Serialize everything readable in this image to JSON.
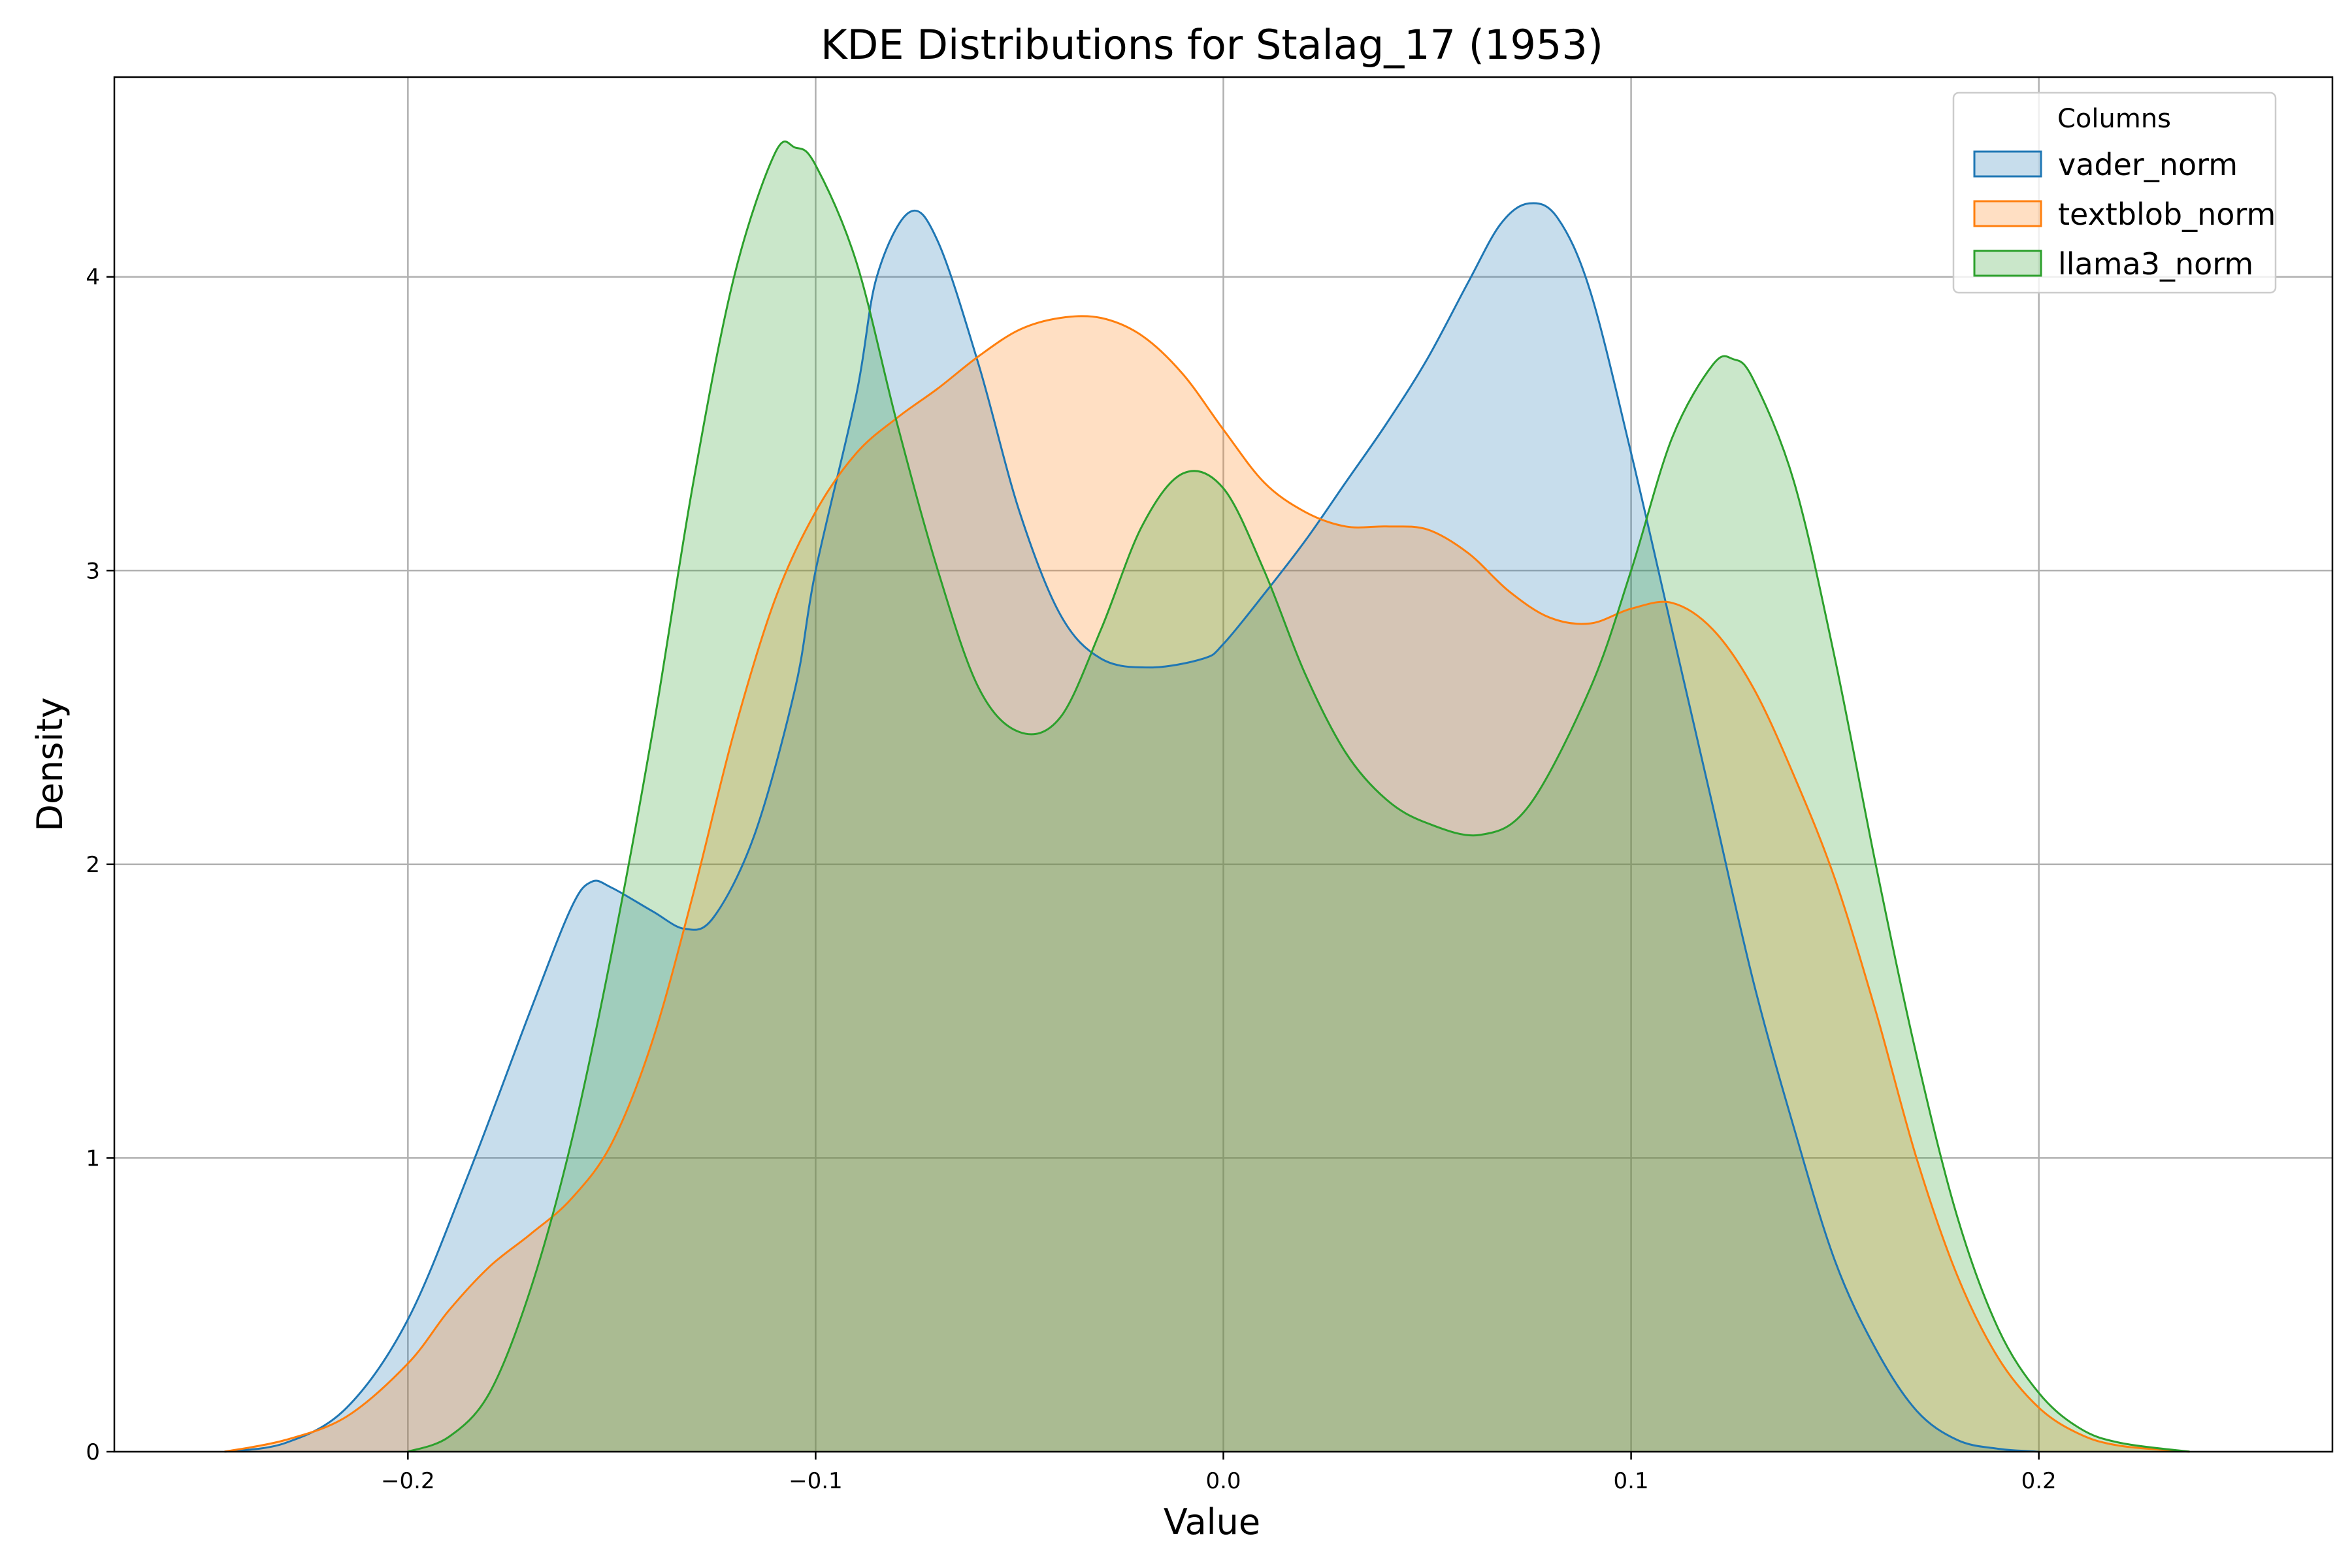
{
  "chart_data": {
    "type": "area",
    "title": "KDE Distributions for Stalag_17 (1953)",
    "xlabel": "Value",
    "ylabel": "Density",
    "xlim": [
      -0.272,
      0.272
    ],
    "ylim": [
      0,
      4.68
    ],
    "xticks": [
      -0.2,
      -0.1,
      0.0,
      0.1,
      0.2
    ],
    "xtick_labels": [
      "−0.2",
      "−0.1",
      "0.0",
      "0.1",
      "0.2"
    ],
    "yticks": [
      0,
      1,
      2,
      3,
      4
    ],
    "ytick_labels": [
      "0",
      "1",
      "2",
      "3",
      "4"
    ],
    "grid": true,
    "legend": {
      "title": "Columns",
      "placement": "top-right"
    },
    "series": [
      {
        "name": "vader_norm",
        "color": "#1f77b4",
        "points": [
          [
            -0.245,
            0
          ],
          [
            -0.23,
            0.03
          ],
          [
            -0.215,
            0.15
          ],
          [
            -0.2,
            0.45
          ],
          [
            -0.185,
            0.95
          ],
          [
            -0.17,
            1.5
          ],
          [
            -0.16,
            1.85
          ],
          [
            -0.155,
            1.94
          ],
          [
            -0.15,
            1.92
          ],
          [
            -0.14,
            1.84
          ],
          [
            -0.132,
            1.78
          ],
          [
            -0.125,
            1.82
          ],
          [
            -0.115,
            2.1
          ],
          [
            -0.105,
            2.6
          ],
          [
            -0.1,
            3.0
          ],
          [
            -0.09,
            3.6
          ],
          [
            -0.085,
            4.0
          ],
          [
            -0.077,
            4.22
          ],
          [
            -0.07,
            4.12
          ],
          [
            -0.06,
            3.7
          ],
          [
            -0.05,
            3.2
          ],
          [
            -0.04,
            2.85
          ],
          [
            -0.03,
            2.7
          ],
          [
            -0.018,
            2.67
          ],
          [
            -0.005,
            2.7
          ],
          [
            0.0,
            2.75
          ],
          [
            0.01,
            2.92
          ],
          [
            0.02,
            3.1
          ],
          [
            0.03,
            3.3
          ],
          [
            0.04,
            3.5
          ],
          [
            0.05,
            3.72
          ],
          [
            0.06,
            3.98
          ],
          [
            0.068,
            4.18
          ],
          [
            0.075,
            4.25
          ],
          [
            0.082,
            4.2
          ],
          [
            0.09,
            3.95
          ],
          [
            0.1,
            3.4
          ],
          [
            0.11,
            2.8
          ],
          [
            0.12,
            2.2
          ],
          [
            0.13,
            1.6
          ],
          [
            0.14,
            1.1
          ],
          [
            0.15,
            0.65
          ],
          [
            0.16,
            0.35
          ],
          [
            0.17,
            0.14
          ],
          [
            0.18,
            0.04
          ],
          [
            0.19,
            0.01
          ],
          [
            0.2,
            0
          ]
        ]
      },
      {
        "name": "textblob_norm",
        "color": "#ff7f0e",
        "points": [
          [
            -0.245,
            0
          ],
          [
            -0.23,
            0.04
          ],
          [
            -0.215,
            0.12
          ],
          [
            -0.2,
            0.3
          ],
          [
            -0.19,
            0.48
          ],
          [
            -0.18,
            0.63
          ],
          [
            -0.17,
            0.74
          ],
          [
            -0.16,
            0.86
          ],
          [
            -0.15,
            1.05
          ],
          [
            -0.14,
            1.4
          ],
          [
            -0.13,
            1.9
          ],
          [
            -0.12,
            2.45
          ],
          [
            -0.11,
            2.9
          ],
          [
            -0.1,
            3.2
          ],
          [
            -0.09,
            3.4
          ],
          [
            -0.08,
            3.52
          ],
          [
            -0.07,
            3.62
          ],
          [
            -0.06,
            3.73
          ],
          [
            -0.05,
            3.82
          ],
          [
            -0.04,
            3.86
          ],
          [
            -0.03,
            3.86
          ],
          [
            -0.02,
            3.8
          ],
          [
            -0.01,
            3.67
          ],
          [
            0.0,
            3.48
          ],
          [
            0.01,
            3.3
          ],
          [
            0.02,
            3.2
          ],
          [
            0.03,
            3.15
          ],
          [
            0.04,
            3.15
          ],
          [
            0.05,
            3.14
          ],
          [
            0.06,
            3.06
          ],
          [
            0.07,
            2.93
          ],
          [
            0.08,
            2.84
          ],
          [
            0.09,
            2.82
          ],
          [
            0.1,
            2.87
          ],
          [
            0.11,
            2.89
          ],
          [
            0.12,
            2.8
          ],
          [
            0.13,
            2.6
          ],
          [
            0.14,
            2.3
          ],
          [
            0.15,
            1.95
          ],
          [
            0.16,
            1.5
          ],
          [
            0.17,
            1.0
          ],
          [
            0.18,
            0.6
          ],
          [
            0.19,
            0.32
          ],
          [
            0.2,
            0.15
          ],
          [
            0.21,
            0.06
          ],
          [
            0.22,
            0.02
          ],
          [
            0.237,
            0
          ]
        ]
      },
      {
        "name": "llama3_norm",
        "color": "#2ca02c",
        "points": [
          [
            -0.2,
            0
          ],
          [
            -0.19,
            0.05
          ],
          [
            -0.18,
            0.2
          ],
          [
            -0.17,
            0.55
          ],
          [
            -0.16,
            1.05
          ],
          [
            -0.15,
            1.7
          ],
          [
            -0.14,
            2.45
          ],
          [
            -0.13,
            3.3
          ],
          [
            -0.12,
            4.0
          ],
          [
            -0.11,
            4.42
          ],
          [
            -0.105,
            4.44
          ],
          [
            -0.1,
            4.38
          ],
          [
            -0.09,
            4.05
          ],
          [
            -0.08,
            3.5
          ],
          [
            -0.07,
            3.0
          ],
          [
            -0.06,
            2.6
          ],
          [
            -0.05,
            2.45
          ],
          [
            -0.04,
            2.5
          ],
          [
            -0.03,
            2.8
          ],
          [
            -0.02,
            3.15
          ],
          [
            -0.01,
            3.33
          ],
          [
            0.0,
            3.28
          ],
          [
            0.01,
            3.0
          ],
          [
            0.02,
            2.65
          ],
          [
            0.03,
            2.38
          ],
          [
            0.04,
            2.22
          ],
          [
            0.05,
            2.14
          ],
          [
            0.063,
            2.1
          ],
          [
            0.075,
            2.2
          ],
          [
            0.09,
            2.6
          ],
          [
            0.1,
            3.0
          ],
          [
            0.11,
            3.45
          ],
          [
            0.12,
            3.7
          ],
          [
            0.125,
            3.72
          ],
          [
            0.13,
            3.65
          ],
          [
            0.14,
            3.3
          ],
          [
            0.15,
            2.7
          ],
          [
            0.16,
            2.0
          ],
          [
            0.17,
            1.35
          ],
          [
            0.18,
            0.8
          ],
          [
            0.19,
            0.42
          ],
          [
            0.2,
            0.2
          ],
          [
            0.21,
            0.08
          ],
          [
            0.22,
            0.03
          ],
          [
            0.237,
            0
          ]
        ]
      }
    ]
  }
}
